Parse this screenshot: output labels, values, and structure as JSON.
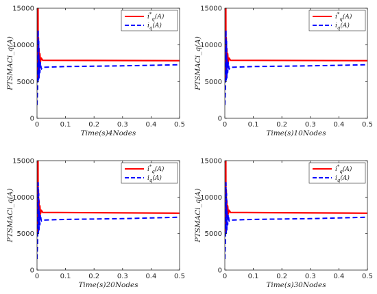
{
  "chart_data": [
    {
      "type": "line",
      "xlabel": "Time(s)4Nodes",
      "ylabel": "PTSMACi_q(A)",
      "xlim": [
        0,
        0.5
      ],
      "ylim": [
        0,
        15000
      ],
      "xticks": [
        "0",
        "0.1",
        "0.2",
        "0.3",
        "0.4",
        "0.5"
      ],
      "yticks": [
        "0",
        "5000",
        "10000",
        "15000"
      ],
      "legend_position": "top-right",
      "series": [
        {
          "name": "i*_q(A)",
          "color": "#ff0000",
          "style": "solid",
          "x": [
            0,
            0.002,
            0.003,
            0.0035,
            0.004,
            0.005,
            0.006,
            0.007,
            0.008,
            0.01,
            0.012,
            0.015,
            0.02,
            0.5
          ],
          "y": [
            5000,
            15000,
            7000,
            15000,
            6500,
            11000,
            7200,
            9500,
            7500,
            8800,
            7700,
            8200,
            7900,
            7850
          ]
        },
        {
          "name": "i_q(A)",
          "color": "#0000ff",
          "style": "dashed",
          "x": [
            0,
            0.002,
            0.004,
            0.005,
            0.006,
            0.007,
            0.008,
            0.01,
            0.012,
            0.015,
            0.02,
            0.1,
            0.2,
            0.3,
            0.4,
            0.5
          ],
          "y": [
            1800,
            4000,
            12000,
            5000,
            10500,
            5500,
            8000,
            6200,
            7600,
            6700,
            6950,
            7050,
            7100,
            7150,
            7220,
            7300
          ]
        }
      ]
    },
    {
      "type": "line",
      "xlabel": "Time(s)10Nodes",
      "ylabel": "PTSMACi_q(A)",
      "xlim": [
        0,
        0.5
      ],
      "ylim": [
        0,
        15000
      ],
      "xticks": [
        "0",
        "0.1",
        "0.2",
        "0.3",
        "0.4",
        "0.5"
      ],
      "yticks": [
        "0",
        "5000",
        "10000",
        "15000"
      ],
      "legend_position": "top-right",
      "series": [
        {
          "name": "i*_q(A)",
          "color": "#ff0000",
          "style": "solid",
          "x": [
            0,
            0.002,
            0.003,
            0.0035,
            0.004,
            0.005,
            0.006,
            0.007,
            0.008,
            0.01,
            0.012,
            0.015,
            0.02,
            0.5
          ],
          "y": [
            5000,
            15000,
            7000,
            15000,
            6500,
            11000,
            7200,
            9500,
            7500,
            8800,
            7700,
            8200,
            7900,
            7850
          ]
        },
        {
          "name": "i_q(A)",
          "color": "#0000ff",
          "style": "dashed",
          "x": [
            0,
            0.002,
            0.004,
            0.005,
            0.006,
            0.007,
            0.008,
            0.01,
            0.012,
            0.015,
            0.02,
            0.1,
            0.2,
            0.3,
            0.4,
            0.5
          ],
          "y": [
            1800,
            4000,
            12000,
            5000,
            10500,
            5500,
            8000,
            6200,
            7600,
            6700,
            6950,
            7050,
            7100,
            7150,
            7220,
            7300
          ]
        }
      ]
    },
    {
      "type": "line",
      "xlabel": "Time(s)20Nodes",
      "ylabel": "PTSMACi_q(A)",
      "xlim": [
        0,
        0.5
      ],
      "ylim": [
        0,
        15000
      ],
      "xticks": [
        "0",
        "0.1",
        "0.2",
        "0.3",
        "0.4",
        "0.5"
      ],
      "yticks": [
        "0",
        "5000",
        "10000",
        "15000"
      ],
      "legend_position": "top-right",
      "series": [
        {
          "name": "i*_q(A)",
          "color": "#ff0000",
          "style": "solid",
          "x": [
            0,
            0.002,
            0.003,
            0.0035,
            0.004,
            0.005,
            0.006,
            0.007,
            0.008,
            0.01,
            0.012,
            0.015,
            0.02,
            0.5
          ],
          "y": [
            5000,
            15000,
            7000,
            15000,
            6500,
            11000,
            7200,
            9500,
            7500,
            8800,
            7700,
            8200,
            7900,
            7800
          ]
        },
        {
          "name": "i_q(A)",
          "color": "#0000ff",
          "style": "dashed",
          "x": [
            0,
            0.002,
            0.004,
            0.005,
            0.006,
            0.007,
            0.008,
            0.01,
            0.012,
            0.015,
            0.02,
            0.1,
            0.2,
            0.3,
            0.4,
            0.5
          ],
          "y": [
            1500,
            4000,
            12000,
            5000,
            10500,
            5500,
            8000,
            6200,
            7600,
            6700,
            6850,
            6950,
            7000,
            7050,
            7150,
            7250
          ]
        }
      ]
    },
    {
      "type": "line",
      "xlabel": "Time(s)30Nodes",
      "ylabel": "PTSMACi_q(A)",
      "xlim": [
        0,
        0.5
      ],
      "ylim": [
        0,
        15000
      ],
      "xticks": [
        "0",
        "0.1",
        "0.2",
        "0.3",
        "0.4",
        "0.5"
      ],
      "yticks": [
        "0",
        "5000",
        "10000",
        "15000"
      ],
      "legend_position": "top-right",
      "series": [
        {
          "name": "i*_q(A)",
          "color": "#ff0000",
          "style": "solid",
          "x": [
            0,
            0.002,
            0.003,
            0.0035,
            0.004,
            0.005,
            0.006,
            0.007,
            0.008,
            0.01,
            0.012,
            0.015,
            0.02,
            0.5
          ],
          "y": [
            5000,
            15000,
            7000,
            15000,
            6500,
            11000,
            7200,
            9500,
            7500,
            8800,
            7700,
            8200,
            7900,
            7800
          ]
        },
        {
          "name": "i_q(A)",
          "color": "#0000ff",
          "style": "dashed",
          "x": [
            0,
            0.002,
            0.004,
            0.005,
            0.006,
            0.007,
            0.008,
            0.01,
            0.012,
            0.015,
            0.02,
            0.1,
            0.2,
            0.3,
            0.4,
            0.5
          ],
          "y": [
            1500,
            4000,
            12000,
            5000,
            10500,
            5500,
            8000,
            6200,
            7600,
            6700,
            6850,
            6950,
            7000,
            7050,
            7150,
            7250
          ]
        }
      ]
    }
  ]
}
